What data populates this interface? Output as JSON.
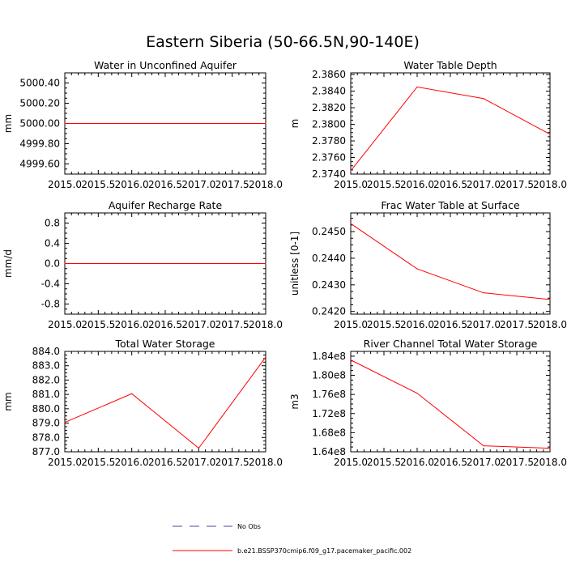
{
  "figure": {
    "title": "Eastern Siberia (50-66.5N,90-140E)"
  },
  "legend": {
    "entries": [
      {
        "label": "No Obs",
        "color": "#4a4a9a",
        "style": "dashed"
      },
      {
        "label": "b.e21.BSSP370cmip6.f09_g17.pacemaker_pacific.002",
        "color": "#ff0000",
        "style": "solid"
      }
    ]
  },
  "chart_data": [
    {
      "type": "line",
      "title": "Water in Unconfined Aquifer",
      "ylabel": "mm",
      "xlim": [
        2015.0,
        2018.0
      ],
      "ylim": [
        4999.5,
        5000.5
      ],
      "xticks": [
        "2015.0",
        "2015.5",
        "2016.0",
        "2016.5",
        "2017.0",
        "2017.5",
        "2018.0"
      ],
      "yticks": [
        "4999.60",
        "4999.80",
        "5000.00",
        "5000.20",
        "5000.40"
      ],
      "x": [
        2015.0,
        2016.0,
        2017.0,
        2018.0
      ],
      "series": [
        {
          "color": "#ff0000",
          "values": [
            5000.0,
            5000.0,
            5000.0,
            5000.0
          ]
        }
      ]
    },
    {
      "type": "line",
      "title": "Water Table Depth",
      "ylabel": "m",
      "xlim": [
        2015.0,
        2018.0
      ],
      "ylim": [
        2.374,
        2.3862
      ],
      "xticks": [
        "2015.0",
        "2015.5",
        "2016.0",
        "2016.5",
        "2017.0",
        "2017.5",
        "2018.0"
      ],
      "yticks": [
        "2.3740",
        "2.3760",
        "2.3780",
        "2.3800",
        "2.3820",
        "2.3840",
        "2.3860"
      ],
      "x": [
        2015.0,
        2016.0,
        2017.0,
        2018.0
      ],
      "series": [
        {
          "color": "#ff0000",
          "values": [
            2.3744,
            2.3845,
            2.3831,
            2.3788
          ]
        }
      ]
    },
    {
      "type": "line",
      "title": "Aquifer Recharge Rate",
      "ylabel": "mm/d",
      "xlim": [
        2015.0,
        2018.0
      ],
      "ylim": [
        -1.0,
        1.0
      ],
      "xticks": [
        "2015.0",
        "2015.5",
        "2016.0",
        "2016.5",
        "2017.0",
        "2017.5",
        "2018.0"
      ],
      "yticks": [
        "-0.8",
        "-0.4",
        "0.0",
        "0.4",
        "0.8"
      ],
      "x": [
        2015.0,
        2016.0,
        2017.0,
        2018.0
      ],
      "series": [
        {
          "color": "#ff0000",
          "values": [
            0.0,
            0.0,
            0.0,
            0.0
          ]
        }
      ]
    },
    {
      "type": "line",
      "title": "Frac Water Table at Surface",
      "ylabel": "unitless [0-1]",
      "xlim": [
        2015.0,
        2018.0
      ],
      "ylim": [
        0.2419,
        0.2457
      ],
      "xticks": [
        "2015.0",
        "2015.5",
        "2016.0",
        "2016.5",
        "2017.0",
        "2017.5",
        "2018.0"
      ],
      "yticks": [
        "0.2420",
        "0.2430",
        "0.2440",
        "0.2450"
      ],
      "x": [
        2015.0,
        2016.0,
        2017.0,
        2018.0
      ],
      "series": [
        {
          "color": "#ff0000",
          "values": [
            0.2453,
            0.2436,
            0.2427,
            0.24245
          ]
        }
      ]
    },
    {
      "type": "line",
      "title": "Total Water Storage",
      "ylabel": "mm",
      "xlim": [
        2015.0,
        2018.0
      ],
      "ylim": [
        877.0,
        884.0
      ],
      "xticks": [
        "2015.0",
        "2015.5",
        "2016.0",
        "2016.5",
        "2017.0",
        "2017.5",
        "2018.0"
      ],
      "yticks": [
        "877.0",
        "878.0",
        "879.0",
        "880.0",
        "881.0",
        "882.0",
        "883.0",
        "884.0"
      ],
      "x": [
        2015.0,
        2016.0,
        2017.0,
        2018.0
      ],
      "series": [
        {
          "color": "#ff0000",
          "values": [
            879.05,
            881.05,
            877.25,
            883.6
          ]
        }
      ]
    },
    {
      "type": "line",
      "title": "River Channel Total Water Storage",
      "ylabel": "m3",
      "xlim": [
        2015.0,
        2018.0
      ],
      "ylim": [
        164000000.0,
        185000000.0
      ],
      "xticks": [
        "2015.0",
        "2015.5",
        "2016.0",
        "2016.5",
        "2017.0",
        "2017.5",
        "2018.0"
      ],
      "yticks": [
        "1.64e8",
        "1.68e8",
        "1.72e8",
        "1.76e8",
        "1.80e8",
        "1.84e8"
      ],
      "x": [
        2015.0,
        2016.0,
        2017.0,
        2018.0
      ],
      "series": [
        {
          "color": "#ff0000",
          "values": [
            183200000.0,
            176250000.0,
            165250000.0,
            164750000.0
          ]
        }
      ]
    }
  ]
}
